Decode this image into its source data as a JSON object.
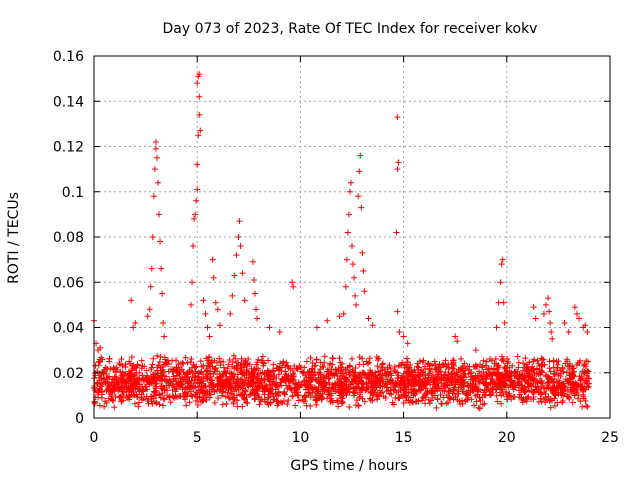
{
  "chart_data": {
    "type": "scatter",
    "title": "Day 073 of 2023, Rate Of TEC Index for receiver kokv",
    "xlabel": "GPS time / hours",
    "ylabel": "ROTI / TECUs",
    "xlim": [
      0,
      25
    ],
    "ylim": [
      0,
      0.16
    ],
    "x_ticks": [
      0,
      5,
      10,
      15,
      20,
      25
    ],
    "x_tick_labels": [
      "0",
      "5",
      "10",
      "15",
      "20",
      "25"
    ],
    "y_ticks": [
      0,
      0.02,
      0.04,
      0.06,
      0.08,
      0.1,
      0.12,
      0.14,
      0.16
    ],
    "y_tick_labels": [
      "0",
      "0.02",
      "0.04",
      "0.06",
      "0.08",
      "0.1",
      "0.12",
      "0.14",
      "0.16"
    ],
    "grid": true,
    "marker": "+",
    "color": "#ff0000",
    "series": [
      {
        "name": "ROTI",
        "baseline": {
          "x_range": [
            0,
            24
          ],
          "y_min": 0.004,
          "y_max": 0.028
        },
        "points": [
          [
            0.0,
            0.043
          ],
          [
            0.1,
            0.033
          ],
          [
            0.2,
            0.03
          ],
          [
            0.3,
            0.031
          ],
          [
            1.8,
            0.052
          ],
          [
            1.9,
            0.04
          ],
          [
            2.0,
            0.042
          ],
          [
            2.6,
            0.045
          ],
          [
            2.7,
            0.048
          ],
          [
            2.75,
            0.058
          ],
          [
            2.8,
            0.066
          ],
          [
            2.85,
            0.08
          ],
          [
            2.9,
            0.098
          ],
          [
            2.95,
            0.11
          ],
          [
            3.0,
            0.119
          ],
          [
            3.0,
            0.122
          ],
          [
            3.05,
            0.115
          ],
          [
            3.1,
            0.104
          ],
          [
            3.15,
            0.09
          ],
          [
            3.2,
            0.078
          ],
          [
            3.25,
            0.066
          ],
          [
            3.3,
            0.055
          ],
          [
            3.35,
            0.042
          ],
          [
            3.4,
            0.036
          ],
          [
            4.7,
            0.05
          ],
          [
            4.75,
            0.06
          ],
          [
            4.8,
            0.076
          ],
          [
            4.85,
            0.088
          ],
          [
            4.9,
            0.09
          ],
          [
            4.95,
            0.096
          ],
          [
            5.0,
            0.101
          ],
          [
            5.0,
            0.112
          ],
          [
            5.05,
            0.125
          ],
          [
            5.1,
            0.134
          ],
          [
            5.1,
            0.142
          ],
          [
            5.0,
            0.148
          ],
          [
            5.05,
            0.151
          ],
          [
            5.1,
            0.152
          ],
          [
            5.15,
            0.127
          ],
          [
            5.3,
            0.052
          ],
          [
            5.4,
            0.046
          ],
          [
            5.5,
            0.04
          ],
          [
            5.6,
            0.036
          ],
          [
            5.75,
            0.07
          ],
          [
            5.8,
            0.062
          ],
          [
            5.9,
            0.051
          ],
          [
            6.0,
            0.048
          ],
          [
            6.1,
            0.041
          ],
          [
            6.6,
            0.046
          ],
          [
            6.7,
            0.054
          ],
          [
            6.8,
            0.063
          ],
          [
            6.9,
            0.072
          ],
          [
            7.0,
            0.08
          ],
          [
            7.05,
            0.087
          ],
          [
            7.1,
            0.076
          ],
          [
            7.2,
            0.064
          ],
          [
            7.3,
            0.052
          ],
          [
            7.7,
            0.069
          ],
          [
            7.75,
            0.061
          ],
          [
            7.8,
            0.055
          ],
          [
            7.85,
            0.048
          ],
          [
            7.9,
            0.044
          ],
          [
            8.5,
            0.04
          ],
          [
            9.0,
            0.038
          ],
          [
            9.6,
            0.06
          ],
          [
            9.65,
            0.058
          ],
          [
            10.8,
            0.04
          ],
          [
            11.3,
            0.043
          ],
          [
            11.9,
            0.045
          ],
          [
            12.1,
            0.046
          ],
          [
            12.2,
            0.058
          ],
          [
            12.25,
            0.07
          ],
          [
            12.3,
            0.082
          ],
          [
            12.35,
            0.09
          ],
          [
            12.4,
            0.1
          ],
          [
            12.45,
            0.104
          ],
          [
            12.5,
            0.076
          ],
          [
            12.55,
            0.068
          ],
          [
            12.6,
            0.062
          ],
          [
            12.65,
            0.054
          ],
          [
            12.7,
            0.05
          ],
          [
            12.8,
            0.098
          ],
          [
            12.85,
            0.109
          ],
          [
            12.9,
            0.116
          ],
          [
            12.95,
            0.093
          ],
          [
            13.0,
            0.073
          ],
          [
            13.05,
            0.065
          ],
          [
            13.1,
            0.056
          ],
          [
            13.3,
            0.044
          ],
          [
            13.5,
            0.041
          ],
          [
            14.7,
            0.133
          ],
          [
            14.75,
            0.113
          ],
          [
            14.7,
            0.11
          ],
          [
            14.65,
            0.082
          ],
          [
            14.7,
            0.047
          ],
          [
            14.8,
            0.038
          ],
          [
            15.0,
            0.036
          ],
          [
            15.2,
            0.033
          ],
          [
            17.5,
            0.036
          ],
          [
            17.6,
            0.034
          ],
          [
            18.5,
            0.03
          ],
          [
            19.5,
            0.04
          ],
          [
            19.6,
            0.051
          ],
          [
            19.7,
            0.06
          ],
          [
            19.75,
            0.068
          ],
          [
            19.8,
            0.07
          ],
          [
            19.85,
            0.051
          ],
          [
            19.9,
            0.042
          ],
          [
            21.3,
            0.049
          ],
          [
            21.4,
            0.044
          ],
          [
            21.8,
            0.046
          ],
          [
            21.9,
            0.05
          ],
          [
            22.0,
            0.053
          ],
          [
            22.05,
            0.047
          ],
          [
            22.1,
            0.042
          ],
          [
            22.15,
            0.038
          ],
          [
            22.2,
            0.035
          ],
          [
            22.8,
            0.042
          ],
          [
            23.0,
            0.038
          ],
          [
            23.3,
            0.049
          ],
          [
            23.4,
            0.046
          ],
          [
            23.5,
            0.044
          ],
          [
            23.7,
            0.04
          ],
          [
            23.8,
            0.041
          ],
          [
            23.9,
            0.038
          ]
        ]
      }
    ]
  }
}
